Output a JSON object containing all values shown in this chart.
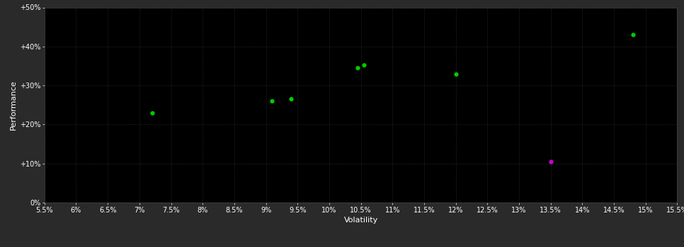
{
  "background_color": "#2a2a2a",
  "plot_bg_color": "#000000",
  "grid_color": "#3a3a3a",
  "text_color": "#ffffff",
  "green_points": [
    [
      7.2,
      23.0
    ],
    [
      9.1,
      26.0
    ],
    [
      9.4,
      26.5
    ],
    [
      10.45,
      34.5
    ],
    [
      10.55,
      35.2
    ],
    [
      12.0,
      33.0
    ],
    [
      14.8,
      43.0
    ]
  ],
  "magenta_points": [
    [
      13.5,
      10.5
    ]
  ],
  "green_color": "#00cc00",
  "magenta_color": "#cc00cc",
  "xlabel": "Volatility",
  "ylabel": "Performance",
  "xlim": [
    5.5,
    15.5
  ],
  "ylim": [
    0,
    50
  ],
  "xticks": [
    5.5,
    6.0,
    6.5,
    7.0,
    7.5,
    8.0,
    8.5,
    9.0,
    9.5,
    10.0,
    10.5,
    11.0,
    11.5,
    12.0,
    12.5,
    13.0,
    13.5,
    14.0,
    14.5,
    15.0,
    15.5
  ],
  "xtick_labels": [
    "5.5%",
    "6%",
    "6.5%",
    "7%",
    "7.5%",
    "8%",
    "8.5%",
    "9%",
    "9.5%",
    "10%",
    "10.5%",
    "11%",
    "11.5%",
    "12%",
    "12.5%",
    "13%",
    "13.5%",
    "14%",
    "14.5%",
    "15%",
    "15.5%"
  ],
  "yticks": [
    0,
    10,
    20,
    30,
    40,
    50
  ],
  "ytick_labels": [
    "0%",
    "+10%",
    "+20%",
    "+30%",
    "+40%",
    "+50%"
  ],
  "marker_size": 20,
  "axis_fontsize": 8,
  "tick_fontsize": 7
}
